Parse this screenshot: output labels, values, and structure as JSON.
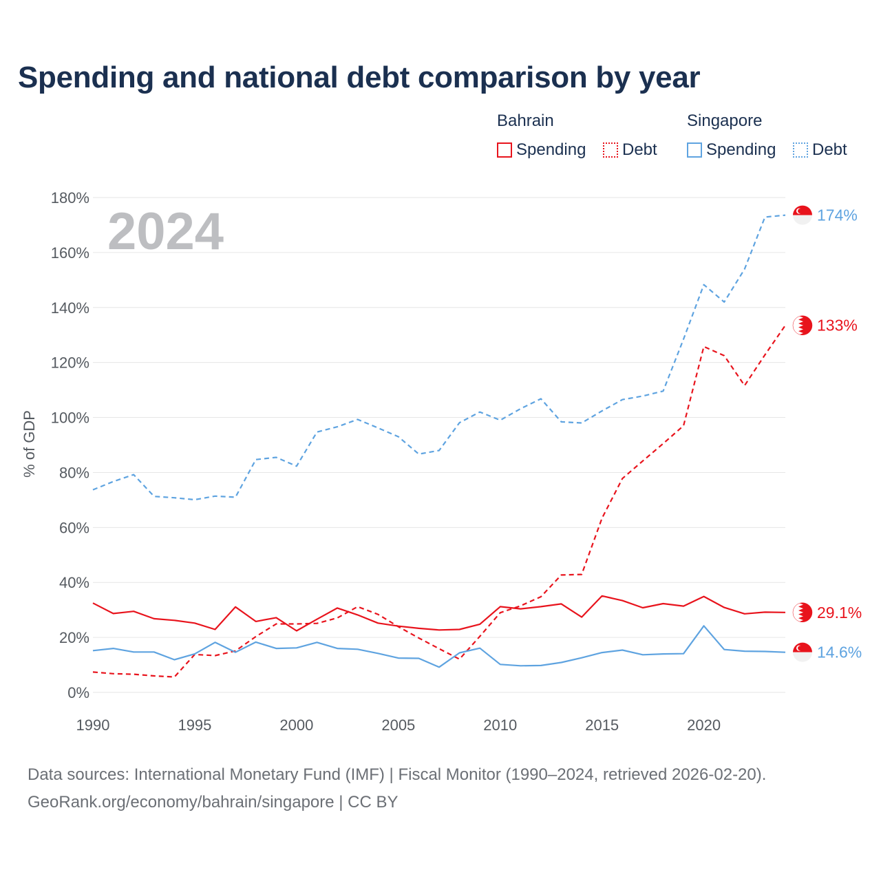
{
  "title": "Spending and national debt comparison by year",
  "legend": {
    "groups": [
      {
        "label": "Bahrain",
        "color": "#e8131c",
        "items": [
          {
            "label": "Spending",
            "style": "solid"
          },
          {
            "label": "Debt",
            "style": "dotted"
          }
        ]
      },
      {
        "label": "Singapore",
        "color": "#5ea3e0",
        "items": [
          {
            "label": "Spending",
            "style": "solid"
          },
          {
            "label": "Debt",
            "style": "dotted"
          }
        ]
      }
    ]
  },
  "footer": {
    "line1": "Data sources: International Monetary Fund (IMF) | Fiscal Monitor (1990–2024, retrieved 2026-02-20).",
    "line2": "GeoRank.org/economy/bahrain/singapore | CC BY"
  },
  "chart_data": {
    "type": "line",
    "title": "Spending and national debt comparison by year",
    "year_label": "2024",
    "ylabel": "% of GDP",
    "xlabel": "",
    "xlim": [
      1990,
      2024
    ],
    "ylim": [
      0,
      180
    ],
    "x_ticks": [
      1990,
      1995,
      2000,
      2005,
      2010,
      2015,
      2020
    ],
    "y_ticks": [
      0,
      20,
      40,
      60,
      80,
      100,
      120,
      140,
      160,
      180
    ],
    "y_tick_labels": [
      "0%",
      "20%",
      "40%",
      "60%",
      "80%",
      "100%",
      "120%",
      "140%",
      "160%",
      "180%"
    ],
    "grid": true,
    "x": [
      1990,
      1991,
      1992,
      1993,
      1994,
      1995,
      1996,
      1997,
      1998,
      1999,
      2000,
      2001,
      2002,
      2003,
      2004,
      2005,
      2006,
      2007,
      2008,
      2009,
      2010,
      2011,
      2012,
      2013,
      2014,
      2015,
      2016,
      2017,
      2018,
      2019,
      2020,
      2021,
      2022,
      2023,
      2024
    ],
    "series": [
      {
        "name": "Singapore Debt",
        "country": "Singapore",
        "metric": "Debt",
        "dashed": true,
        "color": "#5ea3e0",
        "flag": "singapore",
        "end_label": "174%",
        "values": [
          73.7,
          76.7,
          79.2,
          71.3,
          70.8,
          70.1,
          71.4,
          71.0,
          84.7,
          85.5,
          82.3,
          94.7,
          96.6,
          99.3,
          96.2,
          93.0,
          86.7,
          88.0,
          98.1,
          102.0,
          99.0,
          103.2,
          106.8,
          98.4,
          98.0,
          102.4,
          106.5,
          107.8,
          109.6,
          128.5,
          148.3,
          142.0,
          154.0,
          172.9,
          173.6
        ]
      },
      {
        "name": "Bahrain Debt",
        "country": "Bahrain",
        "metric": "Debt",
        "dashed": true,
        "color": "#e8131c",
        "flag": "bahrain",
        "end_label": "133%",
        "values": [
          7.4,
          6.8,
          6.6,
          6.0,
          5.6,
          13.8,
          13.4,
          15.1,
          20.3,
          24.9,
          24.9,
          25.1,
          27.1,
          31.2,
          28.4,
          23.9,
          19.8,
          15.9,
          12.1,
          20.4,
          29.0,
          31.5,
          34.8,
          42.7,
          42.9,
          63.4,
          77.8,
          84.2,
          90.5,
          97.0,
          125.8,
          122.5,
          111.6,
          122.8,
          133.5
        ]
      },
      {
        "name": "Bahrain Spending",
        "country": "Bahrain",
        "metric": "Spending",
        "dashed": false,
        "color": "#e8131c",
        "flag": "bahrain",
        "end_label": "29.1%",
        "values": [
          32.5,
          28.7,
          29.5,
          26.8,
          26.2,
          25.2,
          22.9,
          31.1,
          25.8,
          27.2,
          22.4,
          26.6,
          30.7,
          28.2,
          25.2,
          24.1,
          23.3,
          22.7,
          22.9,
          24.8,
          31.2,
          30.4,
          31.2,
          32.2,
          27.4,
          35.1,
          33.4,
          30.8,
          32.3,
          31.4,
          34.9,
          30.9,
          28.6,
          29.2,
          29.1
        ]
      },
      {
        "name": "Singapore Spending",
        "country": "Singapore",
        "metric": "Spending",
        "dashed": false,
        "color": "#5ea3e0",
        "flag": "singapore",
        "end_label": "14.6%",
        "values": [
          15.2,
          16.0,
          14.7,
          14.7,
          11.9,
          14.0,
          18.2,
          14.6,
          18.3,
          16.0,
          16.2,
          18.2,
          16.0,
          15.7,
          14.2,
          12.5,
          12.4,
          9.2,
          14.4,
          16.1,
          10.2,
          9.7,
          9.8,
          10.9,
          12.6,
          14.5,
          15.4,
          13.7,
          14.0,
          14.1,
          24.2,
          15.6,
          15.0,
          14.9,
          14.6
        ]
      }
    ]
  }
}
